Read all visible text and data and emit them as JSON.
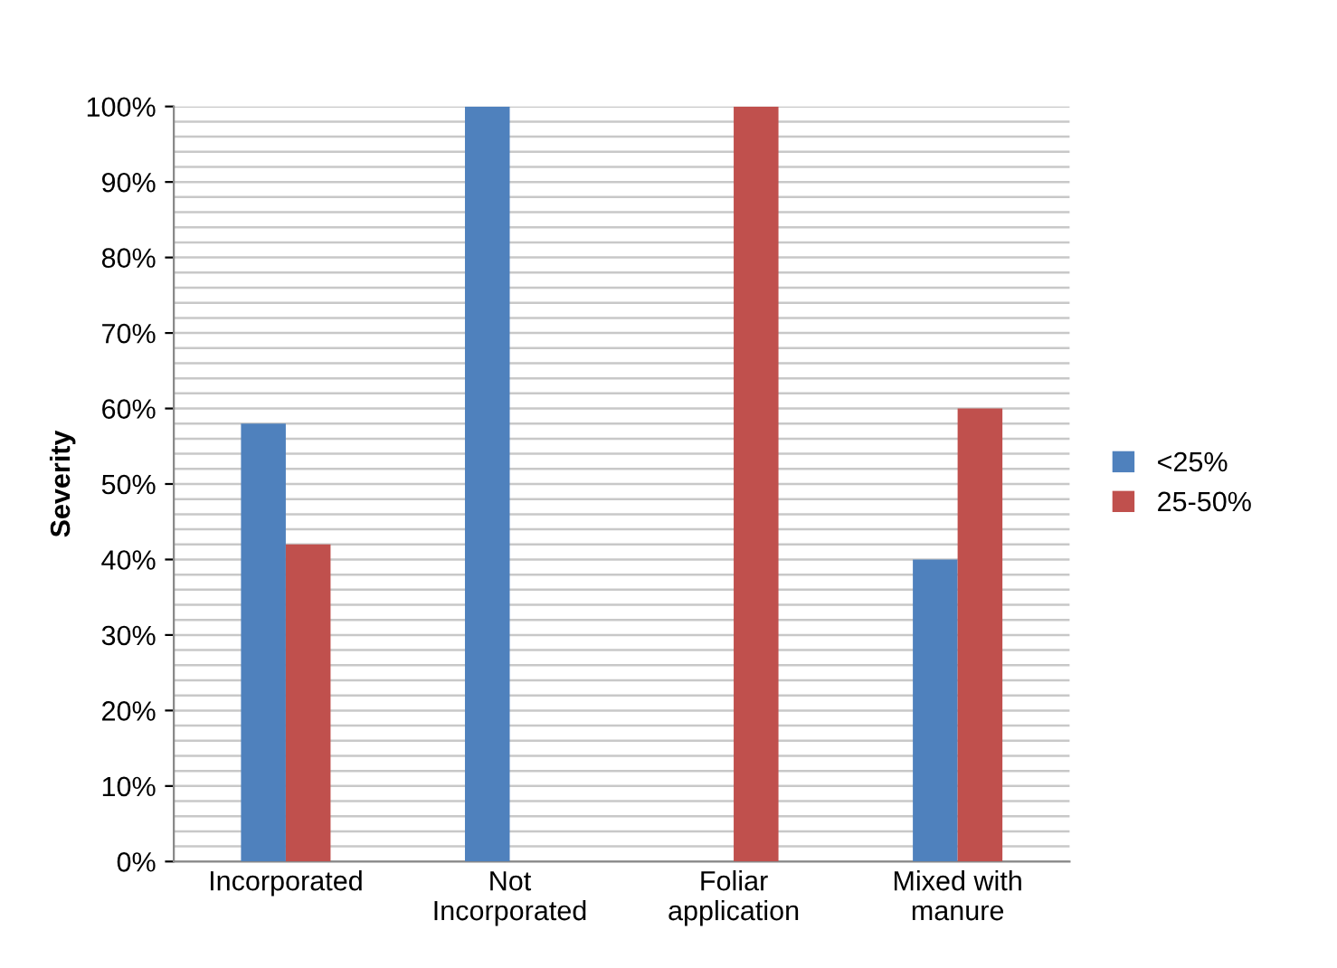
{
  "chart_data": {
    "type": "bar",
    "ylabel": "Severity",
    "categories": [
      "Incorporated",
      "Not\nIncorporated",
      "Foliar\napplication",
      "Mixed with\nmanure"
    ],
    "series": [
      {
        "name": "<25%",
        "color": "#4f81bd",
        "values": [
          58,
          100,
          0,
          40
        ]
      },
      {
        "name": "25-50%",
        "color": "#c0504d",
        "values": [
          42,
          0,
          100,
          60
        ]
      }
    ],
    "ylim": [
      0,
      100
    ],
    "yticks": [
      {
        "value": 0,
        "label": "0%"
      },
      {
        "value": 2,
        "label": null
      },
      {
        "value": 4,
        "label": null
      },
      {
        "value": 6,
        "label": null
      },
      {
        "value": 8,
        "label": null
      },
      {
        "value": 10,
        "label": "10%"
      },
      {
        "value": 12,
        "label": null
      },
      {
        "value": 14,
        "label": null
      },
      {
        "value": 16,
        "label": null
      },
      {
        "value": 18,
        "label": null
      },
      {
        "value": 20,
        "label": "20%"
      },
      {
        "value": 22,
        "label": null
      },
      {
        "value": 24,
        "label": null
      },
      {
        "value": 26,
        "label": null
      },
      {
        "value": 28,
        "label": null
      },
      {
        "value": 30,
        "label": "30%"
      },
      {
        "value": 32,
        "label": null
      },
      {
        "value": 34,
        "label": null
      },
      {
        "value": 36,
        "label": null
      },
      {
        "value": 38,
        "label": null
      },
      {
        "value": 40,
        "label": "40%"
      },
      {
        "value": 42,
        "label": null
      },
      {
        "value": 44,
        "label": null
      },
      {
        "value": 46,
        "label": null
      },
      {
        "value": 48,
        "label": null
      },
      {
        "value": 50,
        "label": "50%"
      },
      {
        "value": 52,
        "label": null
      },
      {
        "value": 54,
        "label": null
      },
      {
        "value": 56,
        "label": null
      },
      {
        "value": 58,
        "label": null
      },
      {
        "value": 60,
        "label": "60%"
      },
      {
        "value": 62,
        "label": null
      },
      {
        "value": 64,
        "label": null
      },
      {
        "value": 66,
        "label": null
      },
      {
        "value": 68,
        "label": null
      },
      {
        "value": 70,
        "label": "70%"
      },
      {
        "value": 72,
        "label": null
      },
      {
        "value": 74,
        "label": null
      },
      {
        "value": 76,
        "label": null
      },
      {
        "value": 78,
        "label": null
      },
      {
        "value": 80,
        "label": "80%"
      },
      {
        "value": 82,
        "label": null
      },
      {
        "value": 84,
        "label": null
      },
      {
        "value": 86,
        "label": null
      },
      {
        "value": 88,
        "label": null
      },
      {
        "value": 90,
        "label": "90%"
      },
      {
        "value": 92,
        "label": null
      },
      {
        "value": 94,
        "label": null
      },
      {
        "value": 96,
        "label": null
      },
      {
        "value": 98,
        "label": null
      },
      {
        "value": 100,
        "label": "100%"
      }
    ],
    "grid": "y",
    "legend": "right"
  }
}
